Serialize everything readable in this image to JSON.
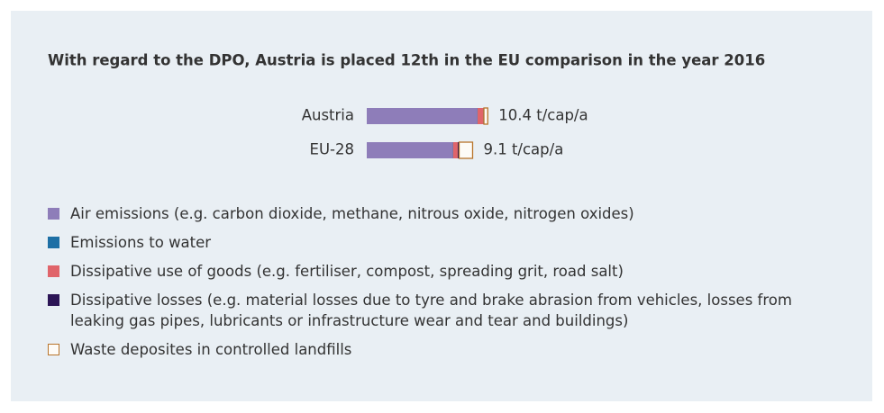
{
  "chart_data": {
    "type": "stacked-bar-horizontal",
    "title": "With regard to the DPO, Austria is placed 12th in the EU comparison in the year 2016",
    "categories": [
      "Austria",
      "EU-28"
    ],
    "series": [
      {
        "name": "Air emissions (e.g. carbon dioxide, methane, nitrous oxide, nitrogen oxides)",
        "color": "#8e7db9",
        "values": [
          9.5,
          7.4
        ]
      },
      {
        "name": "Emissions to water",
        "color": "#1d6fa5",
        "values": [
          0.02,
          0.02
        ]
      },
      {
        "name": "Dissipative use of goods (e.g. fertiliser, compost, spreading grit, road salt)",
        "color": "#e0646a",
        "values": [
          0.5,
          0.4
        ]
      },
      {
        "name": "Dissipative losses (e.g. material losses due to tyre and brake abrasion from vehicles, losses from leaking gas pipes, lubricants or infrastructure wear and tear and buildings)",
        "color": "#2c1556",
        "values": [
          0.05,
          0.12
        ]
      },
      {
        "name": "Waste deposites in controlled landfills",
        "color": "#b8742a",
        "values": [
          0.33,
          1.16
        ]
      }
    ],
    "totals": [
      10.4,
      9.1
    ],
    "total_labels": [
      "10.4 t/cap/a",
      "9.1 t/cap/a"
    ],
    "xlim": [
      0,
      11
    ]
  }
}
